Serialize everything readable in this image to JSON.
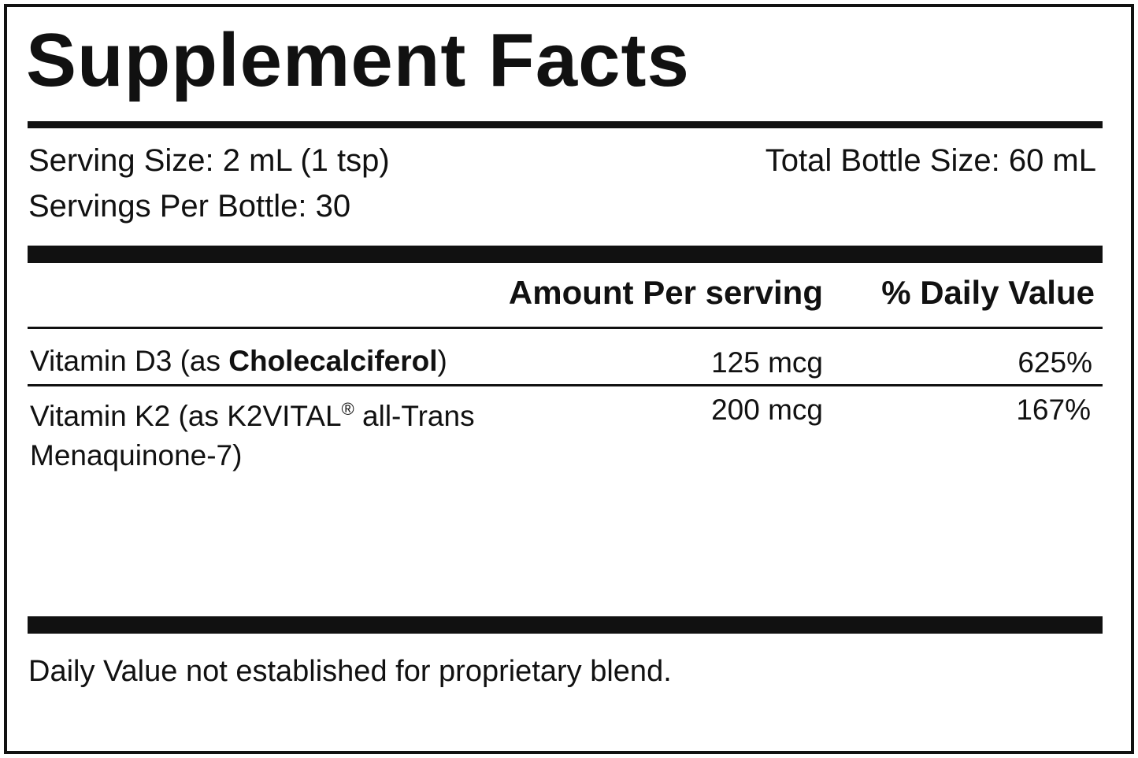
{
  "title": "Supplement Facts",
  "serving": {
    "size": "Serving Size: 2 mL (1 tsp)",
    "per_bottle": "Servings Per Bottle: 30",
    "bottle_size": "Total Bottle Size: 60 mL"
  },
  "table": {
    "headers": {
      "amount": "Amount Per serving",
      "daily_value": "% Daily Value"
    },
    "rows": [
      {
        "name_start": "Vitamin D3 (as ",
        "name_bold": "Cholecalciferol",
        "name_end": ")",
        "amount": "125 mcg",
        "daily_value": "625%"
      },
      {
        "name_start": "Vitamin K2 (as K2VITAL",
        "name_mark": "®",
        "name_end": " all-Trans Menaquinone-7)",
        "amount": "200 mcg",
        "daily_value": "167%"
      }
    ]
  },
  "footnote": "Daily Value not established for proprietary blend."
}
